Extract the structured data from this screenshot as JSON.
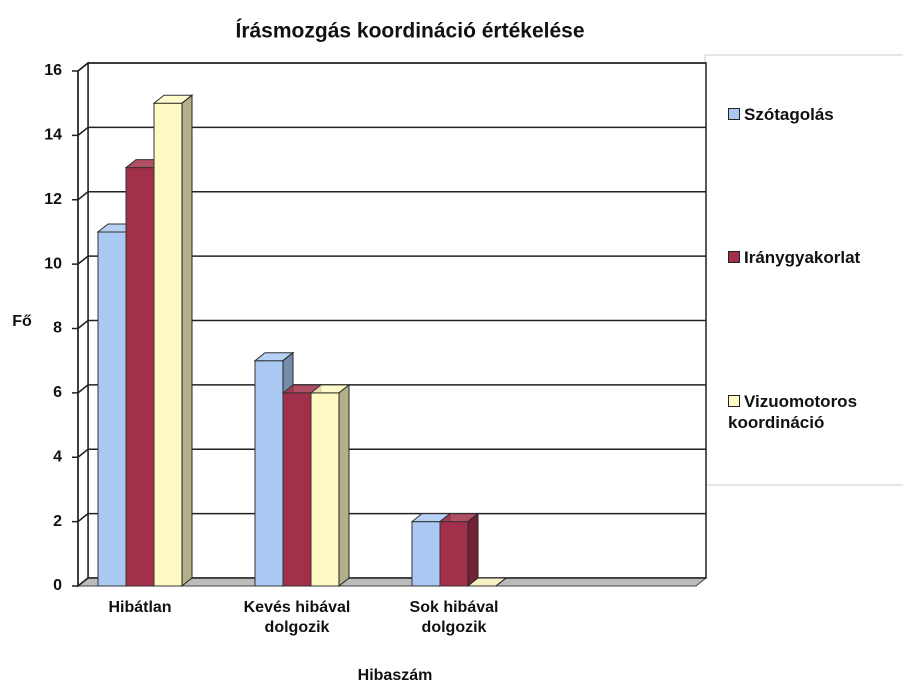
{
  "chart_data": {
    "type": "bar3d",
    "title": "Írásmozgás koordináció értékelése",
    "x_label": "Hibaszám",
    "y_label": "Fő",
    "categories": [
      "Hibátlan",
      "Kevés hibával dolgozik",
      "Sok hibával dolgozik"
    ],
    "series": [
      {
        "name": "Szótagolás",
        "color": "#a9c9f2",
        "values": [
          11,
          7,
          2
        ]
      },
      {
        "name": "Iránygyakorlat",
        "color": "#a3304a",
        "values": [
          13,
          6,
          2
        ]
      },
      {
        "name": "Vizuomotoros koordináció",
        "color": "#fffac4",
        "values": [
          15,
          6,
          0
        ]
      }
    ],
    "ylim": [
      0,
      16
    ],
    "yticks": [
      0,
      2,
      4,
      6,
      8,
      10,
      12,
      14,
      16
    ],
    "grid": true,
    "legend": "right"
  }
}
